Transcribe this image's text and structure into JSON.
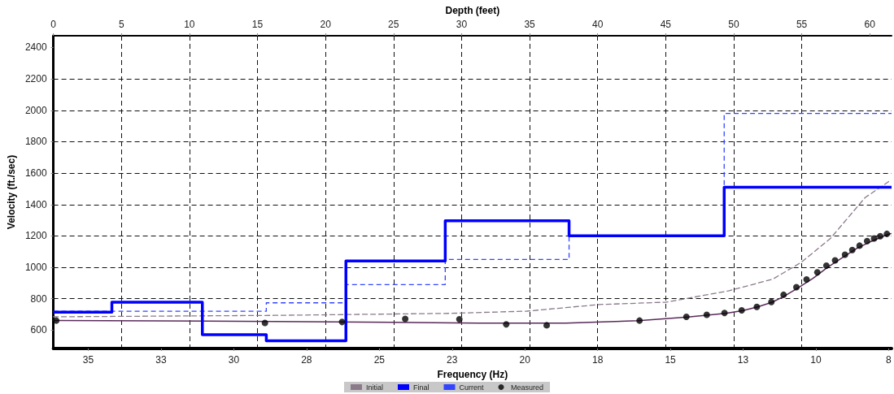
{
  "chart_data": {
    "type": "line",
    "xlabel": "Frequency (Hz)",
    "x2label": "Depth (feet)",
    "ylabel": "Velocity (ft./sec)",
    "xlim": [
      36.6,
      7.8
    ],
    "xticks": [
      {
        "value": 35.4,
        "label": "35"
      },
      {
        "value": 32.9,
        "label": "33"
      },
      {
        "value": 30.4,
        "label": "30"
      },
      {
        "value": 27.9,
        "label": "28"
      },
      {
        "value": 25.4,
        "label": "25"
      },
      {
        "value": 22.9,
        "label": "23"
      },
      {
        "value": 20.4,
        "label": "20"
      },
      {
        "value": 17.9,
        "label": "18"
      },
      {
        "value": 15.4,
        "label": "15"
      },
      {
        "value": 12.9,
        "label": "13"
      },
      {
        "value": 10.4,
        "label": "10"
      },
      {
        "value": 7.9,
        "label": "8"
      }
    ],
    "x2lim": [
      0,
      61.6
    ],
    "x2ticks": [
      0,
      5,
      10,
      15,
      20,
      25,
      30,
      35,
      40,
      45,
      50,
      55,
      60
    ],
    "ylim": [
      483,
      2475
    ],
    "yticks": [
      600,
      800,
      1000,
      1200,
      1400,
      1600,
      1800,
      2000,
      2200,
      2400
    ],
    "grid": true,
    "legend": "bottom",
    "marker": "none",
    "series": [
      {
        "name": "Initial",
        "color": "#8a7a8a",
        "line_style": "dashed",
        "x": [
          36.6,
          29.0,
          22.93,
          20.32,
          17.85,
          15.54,
          13.38,
          11.88,
          10.9,
          9.9,
          8.71,
          7.82
        ],
        "values": [
          685,
          694,
          707,
          721,
          763,
          778,
          851,
          925,
          1032,
          1184,
          1444,
          1556
        ]
      },
      {
        "color": "#5a2a5a",
        "line_style": "solid",
        "x": [
          36.6,
          29.0,
          25.0,
          22.0,
          19.0,
          16.5,
          14.8,
          13.5,
          12.9,
          12.4,
          11.9,
          11.5,
          11.0,
          10.5,
          10.0,
          9.5,
          9.0,
          8.5,
          8.0,
          7.82
        ],
        "values": [
          662,
          655,
          650,
          645,
          645,
          660,
          683,
          707,
          725,
          748,
          778,
          815,
          870,
          930,
          1000,
          1060,
          1120,
          1165,
          1205,
          1215
        ]
      },
      {
        "name": "Final",
        "type": "step",
        "axis": "x2",
        "color": "#0000ff",
        "line_style": "solid",
        "x": [
          0,
          4.3,
          10.95,
          15.65,
          21.5,
          28.8,
          37.9,
          49.3,
          61.6
        ],
        "values": [
          715,
          778,
          571,
          532,
          1040,
          1296,
          1201,
          1510,
          1510
        ]
      },
      {
        "name": "Current",
        "type": "step",
        "axis": "x2",
        "color": "#3344ff",
        "line_style": "dashed",
        "x": [
          0,
          4.3,
          10.95,
          15.65,
          21.5,
          28.8,
          37.9,
          49.3,
          61.6
        ],
        "values": [
          720,
          720,
          720,
          774,
          890,
          1050,
          1200,
          1980,
          1980
        ]
      },
      {
        "name": "Measured",
        "type": "scatter",
        "marker": "circle",
        "color": "#000000",
        "x": [
          36.5,
          29.33,
          26.68,
          24.51,
          22.65,
          21.04,
          19.65,
          16.46,
          14.85,
          14.15,
          13.54,
          12.95,
          12.43,
          11.93,
          11.51,
          11.07,
          10.72,
          10.35,
          10.04,
          9.74,
          9.4,
          9.15,
          8.9,
          8.64,
          8.4,
          8.19,
          7.96
        ],
        "values": [
          661,
          646,
          652,
          672,
          669,
          637,
          631,
          661,
          685,
          698,
          709,
          726,
          748,
          779,
          825,
          874,
          923,
          968,
          1011,
          1044,
          1081,
          1110,
          1138,
          1167,
          1184,
          1198,
          1213
        ]
      }
    ]
  }
}
